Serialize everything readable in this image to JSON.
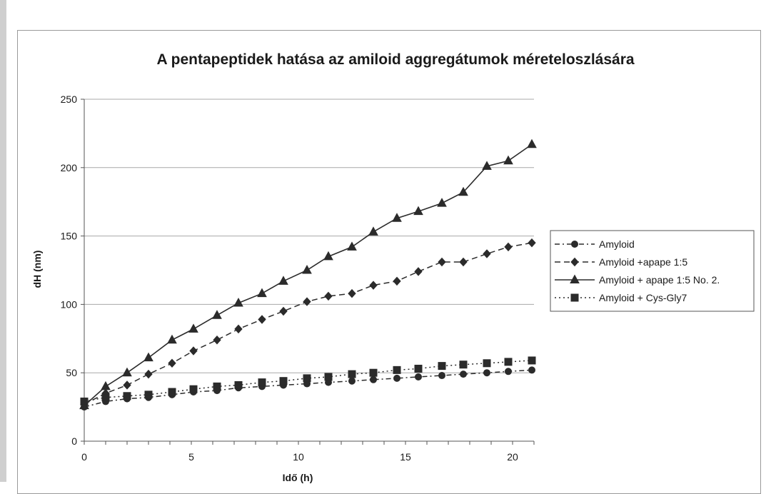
{
  "chart_data": {
    "type": "line",
    "title": "A pentapeptidek hatása az amiloid aggregátumok méreteloszlására",
    "xlabel": "Idő (h)",
    "ylabel": "dH (nm)",
    "xlim": [
      0,
      21
    ],
    "ylim": [
      0,
      250
    ],
    "x_ticks": [
      0,
      5,
      10,
      15,
      20
    ],
    "y_ticks": [
      0,
      50,
      100,
      150,
      200,
      250
    ],
    "grid": "horizontal",
    "legend_position": "right",
    "series": [
      {
        "name": "Amyloid",
        "style": "dash-dot",
        "marker": "circle",
        "x": [
          0,
          1,
          2,
          3,
          4.1,
          5.1,
          6.2,
          7.2,
          8.3,
          9.3,
          10.4,
          11.4,
          12.5,
          13.5,
          14.6,
          15.6,
          16.7,
          17.7,
          18.8,
          19.8,
          20.9
        ],
        "y": [
          25,
          29,
          31,
          32,
          34,
          36,
          37,
          39,
          40,
          41,
          42,
          43,
          44,
          45,
          46,
          47,
          48,
          49,
          50,
          51,
          52
        ]
      },
      {
        "name": "Amyloid +apape 1:5",
        "style": "dash",
        "marker": "diamond",
        "x": [
          0,
          1,
          2,
          3,
          4.1,
          5.1,
          6.2,
          7.2,
          8.3,
          9.3,
          10.4,
          11.4,
          12.5,
          13.5,
          14.6,
          15.6,
          16.7,
          17.7,
          18.8,
          19.8,
          20.9
        ],
        "y": [
          27,
          35,
          41,
          49,
          57,
          66,
          74,
          82,
          89,
          95,
          102,
          106,
          108,
          114,
          117,
          124,
          131,
          131,
          137,
          142,
          145
        ]
      },
      {
        "name": "Amyloid + apape 1:5 No. 2.",
        "style": "solid",
        "marker": "triangle",
        "x": [
          0,
          1,
          2,
          3,
          4.1,
          5.1,
          6.2,
          7.2,
          8.3,
          9.3,
          10.4,
          11.4,
          12.5,
          13.5,
          14.6,
          15.6,
          16.7,
          17.7,
          18.8,
          19.8,
          20.9
        ],
        "y": [
          26,
          40,
          50,
          61,
          74,
          82,
          92,
          101,
          108,
          117,
          125,
          135,
          142,
          153,
          163,
          168,
          174,
          182,
          201,
          205,
          217
        ]
      },
      {
        "name": "Amyloid + Cys-Gly7",
        "style": "dot",
        "marker": "square",
        "x": [
          0,
          1,
          2,
          3,
          4.1,
          5.1,
          6.2,
          7.2,
          8.3,
          9.3,
          10.4,
          11.4,
          12.5,
          13.5,
          14.6,
          15.6,
          16.7,
          17.7,
          18.8,
          19.8,
          20.9
        ],
        "y": [
          29,
          32,
          33,
          34,
          36,
          38,
          40,
          41,
          43,
          44,
          46,
          47,
          49,
          50,
          52,
          53,
          55,
          56,
          57,
          58,
          59
        ]
      }
    ]
  },
  "colors": {
    "line": "#2b2b2b",
    "marker": "#2b2b2b",
    "grid": "#a8a8a8",
    "axis": "#555555"
  }
}
